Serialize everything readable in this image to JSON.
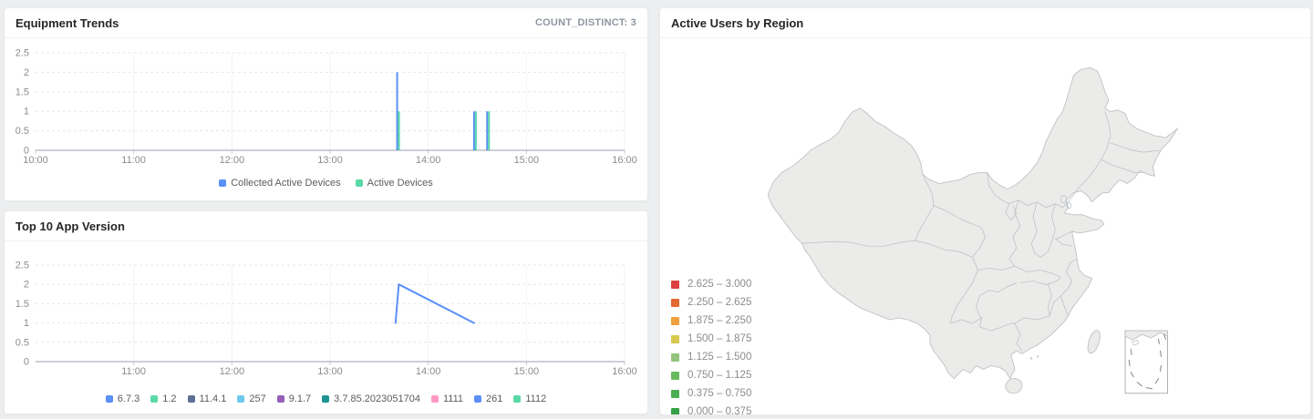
{
  "panels": {
    "equipment_trends": {
      "title": "Equipment Trends",
      "count_distinct_label": "COUNT_DISTINCT: 3"
    },
    "top_app_version": {
      "title": "Top 10 App Version"
    },
    "active_users": {
      "title": "Active Users by Region"
    }
  },
  "chart_data": [
    {
      "id": "equipment-trends",
      "type": "line",
      "title": "Equipment Trends",
      "x_range": [
        "10:00",
        "16:00"
      ],
      "x_ticks": [
        "10:00",
        "11:00",
        "12:00",
        "13:00",
        "14:00",
        "15:00",
        "16:00"
      ],
      "y_ticks": [
        "0",
        "0.5",
        "1",
        "1.5",
        "2",
        "2.5"
      ],
      "ylim": [
        0,
        2.5
      ],
      "grid": true,
      "legend_position": "bottom",
      "series": [
        {
          "name": "Collected Active Devices",
          "color": "#5B8FF9",
          "style": "impulse",
          "points": [
            [
              "13:41",
              2
            ],
            [
              "14:28",
              1
            ],
            [
              "14:36",
              1
            ]
          ]
        },
        {
          "name": "Active Devices",
          "color": "#5AD8A6",
          "style": "impulse",
          "points": [
            [
              "13:41",
              1
            ],
            [
              "14:28",
              1
            ],
            [
              "14:36",
              1
            ]
          ]
        }
      ]
    },
    {
      "id": "top-app-version",
      "type": "line",
      "title": "Top 10 App Version",
      "x_range": [
        "10:00",
        "16:00"
      ],
      "x_ticks": [
        "11:00",
        "12:00",
        "13:00",
        "14:00",
        "15:00",
        "16:00"
      ],
      "y_ticks": [
        "0",
        "0.5",
        "1",
        "1.5",
        "2",
        "2.5"
      ],
      "ylim": [
        0,
        2.5
      ],
      "grid": true,
      "legend_position": "bottom",
      "series": [
        {
          "name": "6.7.3",
          "color": "#5B8FF9",
          "style": "line",
          "points": [
            [
              "13:40",
              1
            ],
            [
              "13:42",
              2
            ],
            [
              "14:28",
              1
            ]
          ]
        },
        {
          "name": "1.2",
          "color": "#5AD8A6",
          "style": "line",
          "points": []
        },
        {
          "name": "11.4.1",
          "color": "#5D7092",
          "style": "line",
          "points": []
        },
        {
          "name": "257",
          "color": "#6DC8EC",
          "style": "line",
          "points": []
        },
        {
          "name": "9.1.7",
          "color": "#945FB9",
          "style": "line",
          "points": []
        },
        {
          "name": "3.7.85.2023051704",
          "color": "#1E9493",
          "style": "line",
          "points": []
        },
        {
          "name": "1111",
          "color": "#FF99C3",
          "style": "line",
          "points": []
        },
        {
          "name": "261",
          "color": "#5B8FF9",
          "style": "line",
          "points": []
        },
        {
          "name": "1112",
          "color": "#5AD8A6",
          "style": "line",
          "points": []
        }
      ]
    },
    {
      "id": "active-users-map",
      "type": "heatmap",
      "subtype": "choropleth-map",
      "title": "Active Users by Region",
      "region": "China",
      "legend_position": "left",
      "bins": [
        {
          "range": "2.625 – 3.000",
          "color": "#DB4040"
        },
        {
          "range": "2.250 – 2.625",
          "color": "#E4692F"
        },
        {
          "range": "1.875 – 2.250",
          "color": "#F0A03C"
        },
        {
          "range": "1.500 – 1.875",
          "color": "#D8C84E"
        },
        {
          "range": "1.125 – 1.500",
          "color": "#93C47D"
        },
        {
          "range": "0.750 – 1.125",
          "color": "#67BB5F"
        },
        {
          "range": "0.375 – 0.750",
          "color": "#4BAD52"
        },
        {
          "range": "0.000 – 0.375",
          "color": "#35A045"
        }
      ],
      "highlighted_regions": [],
      "note": "All provinces rendered in default light gray; no region is shaded by a bin color."
    }
  ]
}
